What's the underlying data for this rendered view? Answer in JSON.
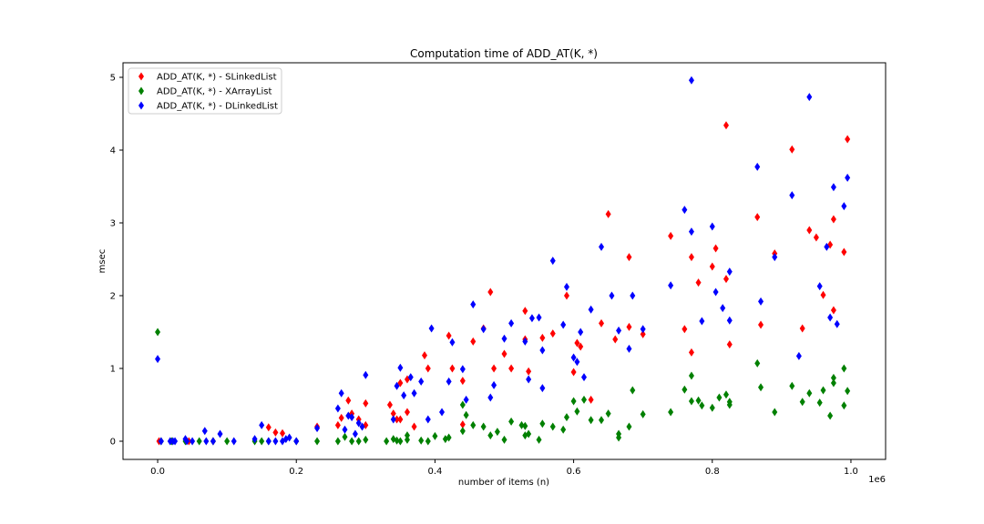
{
  "chart_data": {
    "type": "scatter",
    "title": "Computation time of ADD_AT(K, *)",
    "xlabel": "number of items (n)",
    "ylabel": "msec",
    "x_offset_label": "1e6",
    "xlim": [
      -0.05,
      1.05
    ],
    "ylim": [
      -0.25,
      5.2
    ],
    "x_ticks": [
      0.0,
      0.2,
      0.4,
      0.6,
      0.8,
      1.0
    ],
    "x_tick_labels": [
      "0.0",
      "0.2",
      "0.4",
      "0.6",
      "0.8",
      "1.0"
    ],
    "y_ticks": [
      0,
      1,
      2,
      3,
      4,
      5
    ],
    "y_tick_labels": [
      "0",
      "1",
      "2",
      "3",
      "4",
      "5"
    ],
    "grid": false,
    "legend_position": "top-left",
    "marker": "thin_diamond",
    "series": [
      {
        "name": "ADD_AT(K, *) - SLinkedList",
        "color": "#ff0000",
        "points": [
          [
            0.002,
            0.0
          ],
          [
            0.045,
            0.0
          ],
          [
            0.08,
            0.0
          ],
          [
            0.16,
            0.19
          ],
          [
            0.17,
            0.12
          ],
          [
            0.18,
            0.11
          ],
          [
            0.23,
            0.2
          ],
          [
            0.26,
            0.22
          ],
          [
            0.265,
            0.32
          ],
          [
            0.275,
            0.56
          ],
          [
            0.28,
            0.38
          ],
          [
            0.29,
            0.3
          ],
          [
            0.3,
            0.52
          ],
          [
            0.3,
            0.22
          ],
          [
            0.335,
            0.5
          ],
          [
            0.34,
            0.38
          ],
          [
            0.345,
            0.3
          ],
          [
            0.35,
            0.3
          ],
          [
            0.35,
            0.8
          ],
          [
            0.36,
            0.85
          ],
          [
            0.36,
            0.4
          ],
          [
            0.37,
            0.2
          ],
          [
            0.385,
            1.18
          ],
          [
            0.39,
            1.0
          ],
          [
            0.42,
            1.45
          ],
          [
            0.425,
            1.0
          ],
          [
            0.44,
            0.83
          ],
          [
            0.44,
            0.23
          ],
          [
            0.455,
            1.37
          ],
          [
            0.47,
            1.55
          ],
          [
            0.48,
            2.05
          ],
          [
            0.485,
            1.0
          ],
          [
            0.5,
            1.2
          ],
          [
            0.51,
            1.0
          ],
          [
            0.53,
            1.79
          ],
          [
            0.53,
            1.4
          ],
          [
            0.535,
            0.96
          ],
          [
            0.555,
            1.42
          ],
          [
            0.57,
            1.48
          ],
          [
            0.59,
            2.0
          ],
          [
            0.6,
            0.95
          ],
          [
            0.605,
            1.35
          ],
          [
            0.61,
            1.3
          ],
          [
            0.625,
            0.57
          ],
          [
            0.64,
            1.62
          ],
          [
            0.65,
            3.12
          ],
          [
            0.66,
            1.4
          ],
          [
            0.68,
            2.53
          ],
          [
            0.68,
            1.57
          ],
          [
            0.7,
            1.47
          ],
          [
            0.74,
            2.82
          ],
          [
            0.76,
            1.54
          ],
          [
            0.77,
            2.53
          ],
          [
            0.77,
            1.22
          ],
          [
            0.78,
            2.18
          ],
          [
            0.8,
            2.4
          ],
          [
            0.805,
            2.65
          ],
          [
            0.82,
            2.23
          ],
          [
            0.82,
            4.34
          ],
          [
            0.825,
            1.33
          ],
          [
            0.865,
            3.08
          ],
          [
            0.87,
            1.6
          ],
          [
            0.89,
            2.58
          ],
          [
            0.915,
            4.01
          ],
          [
            0.93,
            1.55
          ],
          [
            0.94,
            2.9
          ],
          [
            0.95,
            2.8
          ],
          [
            0.96,
            2.01
          ],
          [
            0.97,
            2.7
          ],
          [
            0.975,
            3.05
          ],
          [
            0.975,
            1.8
          ],
          [
            0.99,
            2.6
          ],
          [
            0.995,
            4.15
          ]
        ]
      },
      {
        "name": "ADD_AT(K, *) - XArrayList",
        "color": "#008000",
        "points": [
          [
            0.0,
            1.5
          ],
          [
            0.005,
            0.0
          ],
          [
            0.02,
            0.0
          ],
          [
            0.04,
            0.0
          ],
          [
            0.06,
            0.0
          ],
          [
            0.08,
            0.0
          ],
          [
            0.1,
            0.0
          ],
          [
            0.14,
            0.0
          ],
          [
            0.15,
            0.0
          ],
          [
            0.16,
            0.0
          ],
          [
            0.2,
            0.0
          ],
          [
            0.23,
            0.0
          ],
          [
            0.26,
            0.0
          ],
          [
            0.27,
            0.06
          ],
          [
            0.28,
            0.0
          ],
          [
            0.29,
            0.0
          ],
          [
            0.3,
            0.02
          ],
          [
            0.33,
            0.0
          ],
          [
            0.34,
            0.03
          ],
          [
            0.345,
            0.01
          ],
          [
            0.35,
            0.0
          ],
          [
            0.36,
            0.02
          ],
          [
            0.36,
            0.08
          ],
          [
            0.38,
            0.01
          ],
          [
            0.39,
            0.0
          ],
          [
            0.4,
            0.07
          ],
          [
            0.415,
            0.03
          ],
          [
            0.42,
            0.05
          ],
          [
            0.44,
            0.5
          ],
          [
            0.44,
            0.14
          ],
          [
            0.445,
            0.36
          ],
          [
            0.455,
            0.22
          ],
          [
            0.47,
            0.2
          ],
          [
            0.48,
            0.08
          ],
          [
            0.49,
            0.13
          ],
          [
            0.5,
            0.02
          ],
          [
            0.51,
            0.27
          ],
          [
            0.525,
            0.22
          ],
          [
            0.53,
            0.21
          ],
          [
            0.53,
            0.08
          ],
          [
            0.535,
            0.1
          ],
          [
            0.55,
            0.02
          ],
          [
            0.555,
            0.24
          ],
          [
            0.57,
            0.2
          ],
          [
            0.585,
            0.16
          ],
          [
            0.59,
            0.33
          ],
          [
            0.6,
            0.55
          ],
          [
            0.605,
            0.41
          ],
          [
            0.615,
            0.57
          ],
          [
            0.625,
            0.29
          ],
          [
            0.64,
            0.29
          ],
          [
            0.65,
            0.38
          ],
          [
            0.665,
            0.1
          ],
          [
            0.665,
            0.05
          ],
          [
            0.68,
            0.2
          ],
          [
            0.685,
            0.7
          ],
          [
            0.7,
            0.37
          ],
          [
            0.74,
            0.4
          ],
          [
            0.76,
            0.71
          ],
          [
            0.77,
            0.9
          ],
          [
            0.77,
            0.55
          ],
          [
            0.78,
            0.56
          ],
          [
            0.785,
            0.49
          ],
          [
            0.8,
            0.46
          ],
          [
            0.81,
            0.6
          ],
          [
            0.82,
            0.64
          ],
          [
            0.825,
            0.54
          ],
          [
            0.825,
            0.5
          ],
          [
            0.865,
            1.07
          ],
          [
            0.87,
            0.74
          ],
          [
            0.89,
            0.4
          ],
          [
            0.915,
            0.76
          ],
          [
            0.93,
            0.54
          ],
          [
            0.94,
            0.66
          ],
          [
            0.955,
            0.53
          ],
          [
            0.96,
            0.7
          ],
          [
            0.97,
            0.35
          ],
          [
            0.975,
            0.87
          ],
          [
            0.975,
            0.8
          ],
          [
            0.99,
            0.49
          ],
          [
            0.99,
            1.0
          ],
          [
            0.995,
            0.69
          ]
        ]
      },
      {
        "name": "ADD_AT(K, *) - DLinkedList",
        "color": "#0000ff",
        "points": [
          [
            0.0,
            1.13
          ],
          [
            0.005,
            0.0
          ],
          [
            0.018,
            0.0
          ],
          [
            0.022,
            0.0
          ],
          [
            0.025,
            0.0
          ],
          [
            0.04,
            0.03
          ],
          [
            0.042,
            0.0
          ],
          [
            0.05,
            0.0
          ],
          [
            0.068,
            0.14
          ],
          [
            0.07,
            0.0
          ],
          [
            0.08,
            0.0
          ],
          [
            0.09,
            0.1
          ],
          [
            0.11,
            0.0
          ],
          [
            0.14,
            0.03
          ],
          [
            0.15,
            0.22
          ],
          [
            0.16,
            0.0
          ],
          [
            0.17,
            0.0
          ],
          [
            0.18,
            0.0
          ],
          [
            0.185,
            0.03
          ],
          [
            0.19,
            0.05
          ],
          [
            0.2,
            0.0
          ],
          [
            0.23,
            0.18
          ],
          [
            0.26,
            0.45
          ],
          [
            0.265,
            0.66
          ],
          [
            0.27,
            0.16
          ],
          [
            0.275,
            0.35
          ],
          [
            0.28,
            0.33
          ],
          [
            0.285,
            0.1
          ],
          [
            0.29,
            0.25
          ],
          [
            0.295,
            0.2
          ],
          [
            0.3,
            0.91
          ],
          [
            0.34,
            0.3
          ],
          [
            0.345,
            0.76
          ],
          [
            0.35,
            1.01
          ],
          [
            0.355,
            0.63
          ],
          [
            0.365,
            0.88
          ],
          [
            0.37,
            0.66
          ],
          [
            0.38,
            0.82
          ],
          [
            0.39,
            0.3
          ],
          [
            0.395,
            1.55
          ],
          [
            0.41,
            0.4
          ],
          [
            0.42,
            0.82
          ],
          [
            0.425,
            1.36
          ],
          [
            0.44,
            0.99
          ],
          [
            0.445,
            0.57
          ],
          [
            0.455,
            1.88
          ],
          [
            0.47,
            1.54
          ],
          [
            0.48,
            0.6
          ],
          [
            0.485,
            0.77
          ],
          [
            0.5,
            1.41
          ],
          [
            0.51,
            1.62
          ],
          [
            0.53,
            1.37
          ],
          [
            0.535,
            0.85
          ],
          [
            0.54,
            1.69
          ],
          [
            0.55,
            1.7
          ],
          [
            0.555,
            1.25
          ],
          [
            0.555,
            0.73
          ],
          [
            0.57,
            2.48
          ],
          [
            0.585,
            1.6
          ],
          [
            0.59,
            2.12
          ],
          [
            0.6,
            1.15
          ],
          [
            0.605,
            1.09
          ],
          [
            0.61,
            1.5
          ],
          [
            0.615,
            0.88
          ],
          [
            0.625,
            1.81
          ],
          [
            0.64,
            2.67
          ],
          [
            0.655,
            2.0
          ],
          [
            0.665,
            1.52
          ],
          [
            0.68,
            1.27
          ],
          [
            0.685,
            2.0
          ],
          [
            0.7,
            1.54
          ],
          [
            0.74,
            2.14
          ],
          [
            0.76,
            3.18
          ],
          [
            0.77,
            4.96
          ],
          [
            0.77,
            2.88
          ],
          [
            0.785,
            1.65
          ],
          [
            0.8,
            2.95
          ],
          [
            0.805,
            2.05
          ],
          [
            0.815,
            1.83
          ],
          [
            0.825,
            2.33
          ],
          [
            0.825,
            1.66
          ],
          [
            0.865,
            3.77
          ],
          [
            0.87,
            1.92
          ],
          [
            0.89,
            2.53
          ],
          [
            0.915,
            3.38
          ],
          [
            0.925,
            1.17
          ],
          [
            0.94,
            4.73
          ],
          [
            0.955,
            2.13
          ],
          [
            0.965,
            2.67
          ],
          [
            0.97,
            1.7
          ],
          [
            0.975,
            3.49
          ],
          [
            0.98,
            1.61
          ],
          [
            0.99,
            3.23
          ],
          [
            0.995,
            3.62
          ]
        ]
      }
    ]
  }
}
